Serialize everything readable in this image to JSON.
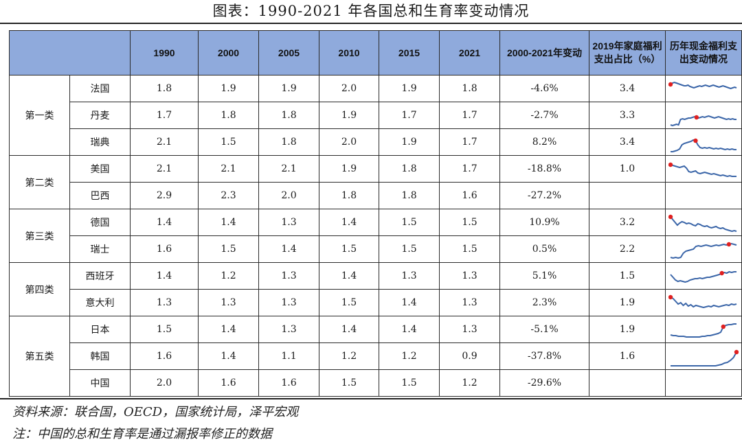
{
  "title": "图表：1990-2021 年各国总和生育率变动情况",
  "headers": [
    "",
    "",
    "1990",
    "2000",
    "2005",
    "2010",
    "2015",
    "2021",
    "2000-2021年变动",
    "2019年家庭福利支出占比（%）",
    "历年现金福利支出变动情况"
  ],
  "groups": [
    {
      "name": "第一类",
      "rows": [
        {
          "country": "法国",
          "values": [
            "1.8",
            "1.9",
            "1.9",
            "2.0",
            "1.9",
            "1.8"
          ],
          "change": "-4.6%",
          "welfare": "3.4",
          "spark": [
            10,
            8,
            7,
            8,
            9,
            10,
            11,
            12,
            12,
            11,
            13,
            14,
            15,
            14,
            13,
            12,
            13,
            12,
            11,
            12,
            13,
            12,
            11,
            12,
            13,
            14,
            13,
            12,
            13,
            14,
            15,
            16,
            15,
            14,
            15
          ],
          "peak": 0
        },
        {
          "country": "丹麦",
          "values": [
            "1.7",
            "1.8",
            "1.8",
            "1.9",
            "1.7",
            "1.7"
          ],
          "change": "-2.7%",
          "welfare": "3.3",
          "spark": [
            30,
            31,
            30,
            29,
            30,
            22,
            21,
            22,
            21,
            20,
            20,
            19,
            18,
            19,
            20,
            19,
            18,
            19,
            18,
            17,
            18,
            19,
            20,
            19,
            18,
            19,
            20,
            21,
            22,
            21,
            22,
            21,
            22,
            22
          ],
          "peak": 13
        },
        {
          "country": "瑞典",
          "values": [
            "2.1",
            "1.5",
            "1.8",
            "2.0",
            "1.9",
            "1.7"
          ],
          "change": "8.2%",
          "welfare": "3.4",
          "spark": [
            30,
            30,
            29,
            28,
            26,
            20,
            18,
            17,
            16,
            15,
            13,
            14,
            20,
            24,
            25,
            24,
            25,
            24,
            25,
            26,
            25,
            26,
            25,
            26,
            27,
            26,
            27,
            26,
            27,
            27
          ],
          "peak": 11
        }
      ]
    },
    {
      "name": "第二类",
      "rows": [
        {
          "country": "美国",
          "values": [
            "2.1",
            "2.1",
            "2.1",
            "1.9",
            "1.8",
            "1.7"
          ],
          "change": "-18.8%",
          "welfare": "1.0",
          "spark": [
            10,
            11,
            12,
            13,
            14,
            13,
            12,
            15,
            20,
            21,
            20,
            19,
            22,
            23,
            22,
            21,
            22,
            23,
            24,
            23,
            24,
            25,
            26,
            25,
            26,
            27,
            26,
            27,
            27,
            27
          ],
          "peak": 0
        },
        {
          "country": "巴西",
          "values": [
            "2.9",
            "2.3",
            "2.0",
            "1.8",
            "1.8",
            "1.6"
          ],
          "change": "-27.2%",
          "welfare": "",
          "spark": [],
          "peak": -1
        }
      ]
    },
    {
      "name": "第三类",
      "rows": [
        {
          "country": "德国",
          "values": [
            "1.4",
            "1.4",
            "1.3",
            "1.4",
            "1.5",
            "1.5"
          ],
          "change": "10.9%",
          "welfare": "3.2",
          "spark": [
            8,
            12,
            16,
            20,
            17,
            15,
            16,
            18,
            17,
            18,
            20,
            21,
            18,
            19,
            21,
            22,
            21,
            23,
            24,
            23,
            22,
            24,
            25,
            24,
            26,
            27,
            28,
            29,
            28,
            29
          ],
          "peak": 0
        },
        {
          "country": "瑞士",
          "values": [
            "1.6",
            "1.5",
            "1.4",
            "1.5",
            "1.5",
            "1.5"
          ],
          "change": "0.5%",
          "welfare": "2.2",
          "spark": [
            28,
            29,
            28,
            29,
            28,
            22,
            19,
            18,
            17,
            16,
            12,
            11,
            12,
            11,
            10,
            11,
            12,
            11,
            10,
            11,
            10,
            9,
            10,
            9,
            8,
            9,
            10
          ],
          "peak": 23
        }
      ]
    },
    {
      "name": "第四类",
      "rows": [
        {
          "country": "西班牙",
          "values": [
            "1.4",
            "1.2",
            "1.3",
            "1.4",
            "1.3",
            "1.3"
          ],
          "change": "5.1%",
          "welfare": "1.5",
          "spark": [
            14,
            18,
            22,
            24,
            23,
            24,
            25,
            24,
            22,
            21,
            20,
            20,
            19,
            20,
            19,
            18,
            18,
            17,
            16,
            15,
            14,
            12,
            11,
            12,
            10,
            11,
            10,
            10
          ],
          "peak": 21
        },
        {
          "country": "意大利",
          "values": [
            "1.3",
            "1.3",
            "1.3",
            "1.5",
            "1.4",
            "1.3"
          ],
          "change": "2.3%",
          "welfare": "1.9",
          "spark": [
            8,
            10,
            14,
            18,
            16,
            20,
            17,
            21,
            19,
            22,
            20,
            21,
            22,
            23,
            22,
            21,
            22,
            20,
            21,
            22,
            21,
            20,
            19,
            20,
            18,
            19,
            18
          ],
          "peak": 0
        }
      ]
    },
    {
      "name": "第五类",
      "rows": [
        {
          "country": "日本",
          "values": [
            "1.5",
            "1.4",
            "1.3",
            "1.4",
            "1.4",
            "1.3"
          ],
          "change": "-5.1%",
          "welfare": "1.9",
          "spark": [
            24,
            25,
            25,
            26,
            26,
            26,
            27,
            27,
            27,
            27,
            27,
            27,
            26,
            26,
            25,
            25,
            24,
            23,
            22,
            20,
            12,
            10,
            9,
            9,
            8,
            8
          ],
          "peak": 20
        },
        {
          "country": "韩国",
          "values": [
            "1.6",
            "1.4",
            "1.1",
            "1.2",
            "1.2",
            "0.9"
          ],
          "change": "-37.8%",
          "welfare": "1.6",
          "spark": [
            30,
            30,
            30,
            30,
            30,
            30,
            30,
            30,
            30,
            30,
            30,
            30,
            30,
            30,
            30,
            30,
            29,
            28,
            26,
            25,
            22,
            18,
            10
          ],
          "peak": 22
        },
        {
          "country": "中国",
          "values": [
            "2.0",
            "1.6",
            "1.6",
            "1.5",
            "1.5",
            "1.2"
          ],
          "change": "-29.6%",
          "welfare": "",
          "spark": [],
          "peak": -1
        }
      ]
    }
  ],
  "colors": {
    "header_bg": "#8faadc",
    "spark_line": "#3a65a8",
    "spark_peak": "#e02020"
  },
  "notes": {
    "source": "资料来源：联合国，OECD，国家统计局，泽平宏观",
    "remark": "注：中国的总和生育率是通过漏报率修正的数据"
  }
}
